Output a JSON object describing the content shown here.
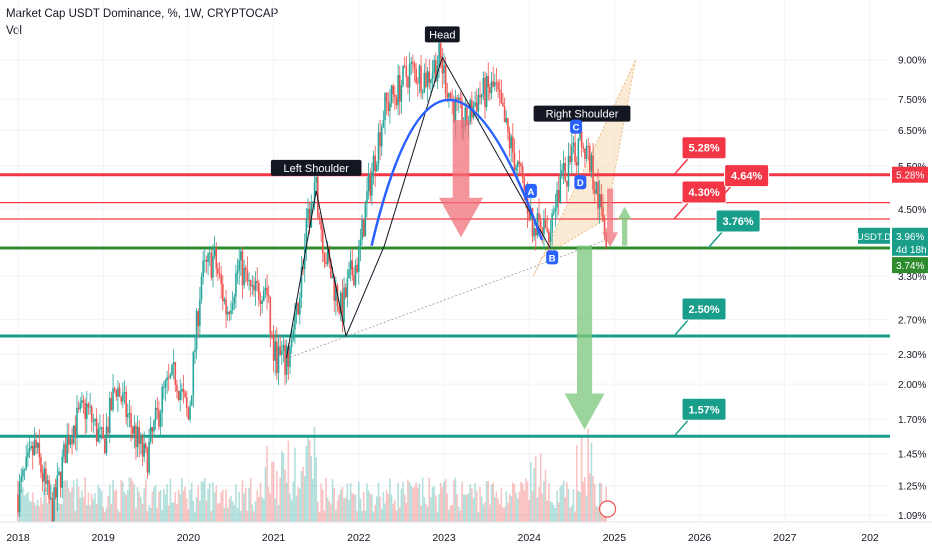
{
  "header": {
    "title": "Market Cap USDT Dominance, %, 1W, CRYPTOCAP",
    "subtitle": "Vol",
    "scale_button": "%"
  },
  "colors": {
    "up": "#26a69a",
    "down": "#ef5350",
    "resistance": "#f23645",
    "support_main": "#2e8b2e",
    "support_teal": "#1a9e8c",
    "head_arc": "#2962ff",
    "pattern_line": "#131722",
    "arrow_red": "#f0727a",
    "arrow_green": "#7ac77a",
    "wedge_fill": "#f8d9b0"
  },
  "chart_data": {
    "type": "candlestick",
    "title": "Market Cap USDT Dominance, %, 1W, CRYPTOCAP",
    "y_scale": "log",
    "ylim": [
      1.07,
      10.0
    ],
    "xlim": [
      2018.0,
      2027.95
    ],
    "x_tick_labels": [
      "2018",
      "2019",
      "2020",
      "2021",
      "2022",
      "2023",
      "2024",
      "2025",
      "2026",
      "2027",
      "202"
    ],
    "y_tick_labels": [
      "9.00%",
      "7.50%",
      "6.50%",
      "5.50%",
      "4.50%",
      "3.30%",
      "2.70%",
      "2.30%",
      "2.00%",
      "1.70%",
      "1.45%",
      "1.25%",
      "1.09%"
    ],
    "price_path": [
      [
        2018.0,
        1.2
      ],
      [
        2018.2,
        1.5
      ],
      [
        2018.4,
        1.1
      ],
      [
        2018.6,
        1.6
      ],
      [
        2018.8,
        1.8
      ],
      [
        2019.0,
        1.5
      ],
      [
        2019.15,
        2.0
      ],
      [
        2019.3,
        1.7
      ],
      [
        2019.5,
        1.4
      ],
      [
        2019.7,
        1.9
      ],
      [
        2019.85,
        2.1
      ],
      [
        2020.0,
        1.7
      ],
      [
        2020.15,
        3.3
      ],
      [
        2020.3,
        3.6
      ],
      [
        2020.45,
        2.8
      ],
      [
        2020.6,
        3.5
      ],
      [
        2020.75,
        3.0
      ],
      [
        2020.9,
        3.2
      ],
      [
        2021.0,
        2.3
      ],
      [
        2021.15,
        2.2
      ],
      [
        2021.25,
        2.6
      ],
      [
        2021.4,
        4.2
      ],
      [
        2021.5,
        4.9
      ],
      [
        2021.6,
        3.7
      ],
      [
        2021.7,
        3.2
      ],
      [
        2021.8,
        2.8
      ],
      [
        2021.9,
        3.3
      ],
      [
        2022.0,
        3.6
      ],
      [
        2022.1,
        4.8
      ],
      [
        2022.3,
        7.2
      ],
      [
        2022.45,
        7.8
      ],
      [
        2022.6,
        8.6
      ],
      [
        2022.8,
        8.3
      ],
      [
        2022.95,
        9.1
      ],
      [
        2023.1,
        7.3
      ],
      [
        2023.25,
        6.7
      ],
      [
        2023.4,
        7.6
      ],
      [
        2023.6,
        7.9
      ],
      [
        2023.75,
        6.3
      ],
      [
        2023.9,
        5.2
      ],
      [
        2024.05,
        4.2
      ],
      [
        2024.2,
        4.0
      ],
      [
        2024.35,
        5.0
      ],
      [
        2024.5,
        5.6
      ],
      [
        2024.62,
        6.3
      ],
      [
        2024.72,
        5.6
      ],
      [
        2024.82,
        4.6
      ],
      [
        2024.92,
        3.96
      ]
    ],
    "last_value": 3.96,
    "horizontal_levels": [
      {
        "value": 5.28,
        "label": "5.28%",
        "role": "resistance"
      },
      {
        "value": 4.64,
        "label": "4.64%",
        "role": "resistance"
      },
      {
        "value": 4.3,
        "label": "4.30%",
        "role": "resistance"
      },
      {
        "value": 3.76,
        "label": "3.76%",
        "role": "support"
      },
      {
        "value": 2.5,
        "label": "2.50%",
        "role": "support"
      },
      {
        "value": 1.57,
        "label": "1.57%",
        "role": "support"
      }
    ],
    "price_tags": [
      {
        "text": "5.28%",
        "value": 5.28,
        "color": "#f23645"
      },
      {
        "text": "USDT.D",
        "value": 3.96,
        "color": "#1a9e8c"
      },
      {
        "text": "3.96%",
        "value": 3.96,
        "color": "#1a9e8c"
      },
      {
        "text": "4d 18h",
        "value": 3.96,
        "color": "#1a9e8c"
      },
      {
        "text": "3.74%",
        "value": 3.74,
        "color": "#2e8b2e"
      }
    ],
    "annotations": [
      {
        "text": "Head",
        "x": 2022.98,
        "y": 9.1
      },
      {
        "text": "Left Shoulder",
        "x": 2021.5,
        "y": 4.9
      },
      {
        "text": "Right Shoulder",
        "x": 2024.62,
        "y": 6.3
      }
    ],
    "point_labels": [
      "A",
      "B",
      "C",
      "D"
    ],
    "callouts": [
      {
        "text": "5.28%",
        "x": 2025.7,
        "y": 5.28,
        "color": "#f23645"
      },
      {
        "text": "4.30%",
        "x": 2025.7,
        "y": 4.3,
        "color": "#f23645"
      },
      {
        "text": "4.64%",
        "x": 2026.2,
        "y": 4.64,
        "color": "#f23645"
      },
      {
        "text": "3.76%",
        "x": 2026.1,
        "y": 3.76,
        "color": "#1a9e8c"
      },
      {
        "text": "2.50%",
        "x": 2025.7,
        "y": 2.5,
        "color": "#1a9e8c"
      },
      {
        "text": "1.57%",
        "x": 2025.7,
        "y": 1.57,
        "color": "#1a9e8c"
      }
    ],
    "pattern": "head-and-shoulders"
  }
}
